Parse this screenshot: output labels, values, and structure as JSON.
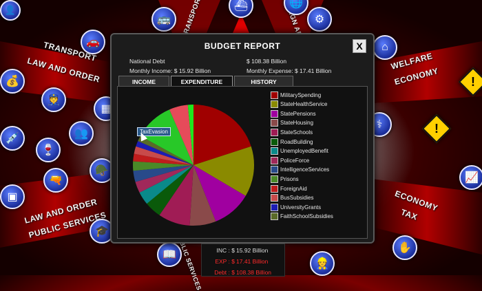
{
  "window": {
    "title": "BUDGET REPORT",
    "close_label": "X"
  },
  "summary": {
    "national_debt_label": "National Debt",
    "national_debt_value": "$   108.38 Billion",
    "monthly_income_label": "Monthly Income:",
    "monthly_income_value": "$   15.92 Billion",
    "monthly_expense_label": "Monthly Expense:",
    "monthly_expense_value": "$   17.41 Billion"
  },
  "tabs": [
    {
      "label": "INCOME",
      "active": false
    },
    {
      "label": "EXPENDITURE",
      "active": true
    },
    {
      "label": "HISTORY",
      "active": false
    }
  ],
  "tooltip": "TaxEvasion",
  "chart_data": {
    "type": "pie",
    "title": "",
    "slices": [
      {
        "label": "MilitarySpending",
        "value": 20.0,
        "color": "#a00000"
      },
      {
        "label": "StateHealthService",
        "value": 13.5,
        "color": "#8a8a00"
      },
      {
        "label": "StatePensions",
        "value": 10.5,
        "color": "#a000a0"
      },
      {
        "label": "StateHousing",
        "value": 7.0,
        "color": "#8a4a4a"
      },
      {
        "label": "StateSchools",
        "value": 8.5,
        "color": "#a01c55"
      },
      {
        "label": "RoadBuilding",
        "value": 4.5,
        "color": "#0a5a0a"
      },
      {
        "label": "UnemployedBenefit",
        "value": 3.5,
        "color": "#0a8a8a"
      },
      {
        "label": "PoliceForce",
        "value": 3.0,
        "color": "#a0285a"
      },
      {
        "label": "IntelligenceServices",
        "value": 3.0,
        "color": "#284a8a"
      },
      {
        "label": "Prisons",
        "value": 2.5,
        "color": "#4a8a28"
      },
      {
        "label": "ForeignAid",
        "value": 2.0,
        "color": "#c01c1c"
      },
      {
        "label": "BusSubsidies",
        "value": 2.0,
        "color": "#c84a4a"
      },
      {
        "label": "UniversityGrants",
        "value": 1.5,
        "color": "#1c1cb4"
      },
      {
        "label": "FaithSchoolSubsidies",
        "value": 1.5,
        "color": "#5a6a28"
      },
      {
        "label": "TaxEvasion",
        "value": 10.5,
        "color": "#28c828"
      },
      {
        "label": "",
        "value": 5.0,
        "color": "#e64b5a"
      },
      {
        "label": "",
        "value": 1.5,
        "color": "#1ee61e"
      }
    ],
    "legend": [
      "MilitarySpending",
      "StateHealthService",
      "StatePensions",
      "StateHousing",
      "StateSchools",
      "RoadBuilding",
      "UnemployedBenefit",
      "PoliceForce",
      "IntelligenceServices",
      "Prisons",
      "ForeignAid",
      "BusSubsidies",
      "UniversityGrants",
      "FaithSchoolSubsidies"
    ]
  },
  "footer": {
    "inc_label": "INC : $",
    "inc_value": "15.92 Billion",
    "inc_color": "#dddddd",
    "exp_label": "EXP : $",
    "exp_value": "17.41 Billion",
    "exp_color": "#ff2a2a",
    "debt_label": "Debt : $",
    "debt_value": "108.38 Billion",
    "debt_color": "#ff2a2a"
  },
  "map_labels": {
    "transport": "TRANSPORT",
    "law_and_order": "LAW AND ORDER",
    "law_and_order_2": "LAW AND ORDER",
    "public_services": "PUBLIC SERVICES",
    "welfare": "WELFARE",
    "economy": "ECONOMY",
    "economy_2": "ECONOMY",
    "tax": "TAX",
    "transport_top": "TRANSPORT",
    "foreign_affairs": "FOREIGN AF",
    "public_services_bottom": "PUBLIC SERVICES"
  }
}
